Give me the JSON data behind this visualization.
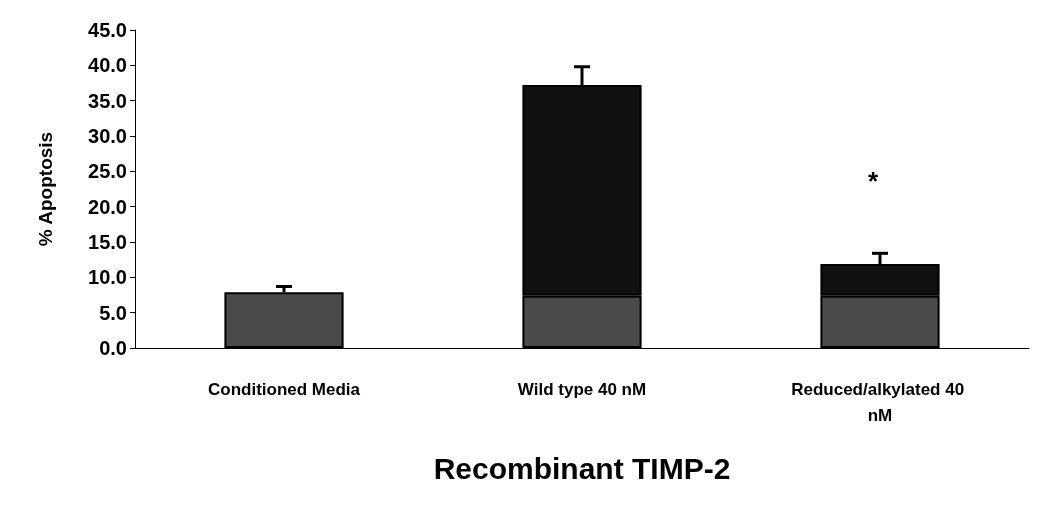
{
  "chart_data": {
    "type": "bar",
    "xlabel": "Recombinant TIMP-2",
    "ylabel": "% Apoptosis",
    "categories": [
      "Conditioned Media",
      "Wild type 40 nM",
      "Reduced/alkylated 40 nM"
    ],
    "stacked": true,
    "series": [
      {
        "color": "#4a4a4a",
        "values": [
          7.9,
          7.4,
          7.4
        ],
        "errors": [
          [
            7.9,
            8.7
          ],
          null,
          null
        ]
      },
      {
        "color": "#111111",
        "values": [
          null,
          29.8,
          4.5
        ],
        "errors": [
          null,
          [
            37.2,
            39.8
          ],
          [
            11.9,
            13.4
          ]
        ]
      }
    ],
    "ylim": [
      0,
      45
    ],
    "yticks": [
      {
        "value": 0,
        "label": "0.0"
      },
      {
        "value": 5,
        "label": "5.0"
      },
      {
        "value": 10,
        "label": "10.0"
      },
      {
        "value": 15,
        "label": "15.0"
      },
      {
        "value": 20,
        "label": "20.0"
      },
      {
        "value": 25,
        "label": "25.0"
      },
      {
        "value": 30,
        "label": "30.0"
      },
      {
        "value": 35,
        "label": "35.0"
      },
      {
        "value": 40,
        "label": "40.0"
      },
      {
        "value": 45,
        "label": "45.0"
      }
    ],
    "annotations": [
      "*"
    ],
    "grid": false
  }
}
